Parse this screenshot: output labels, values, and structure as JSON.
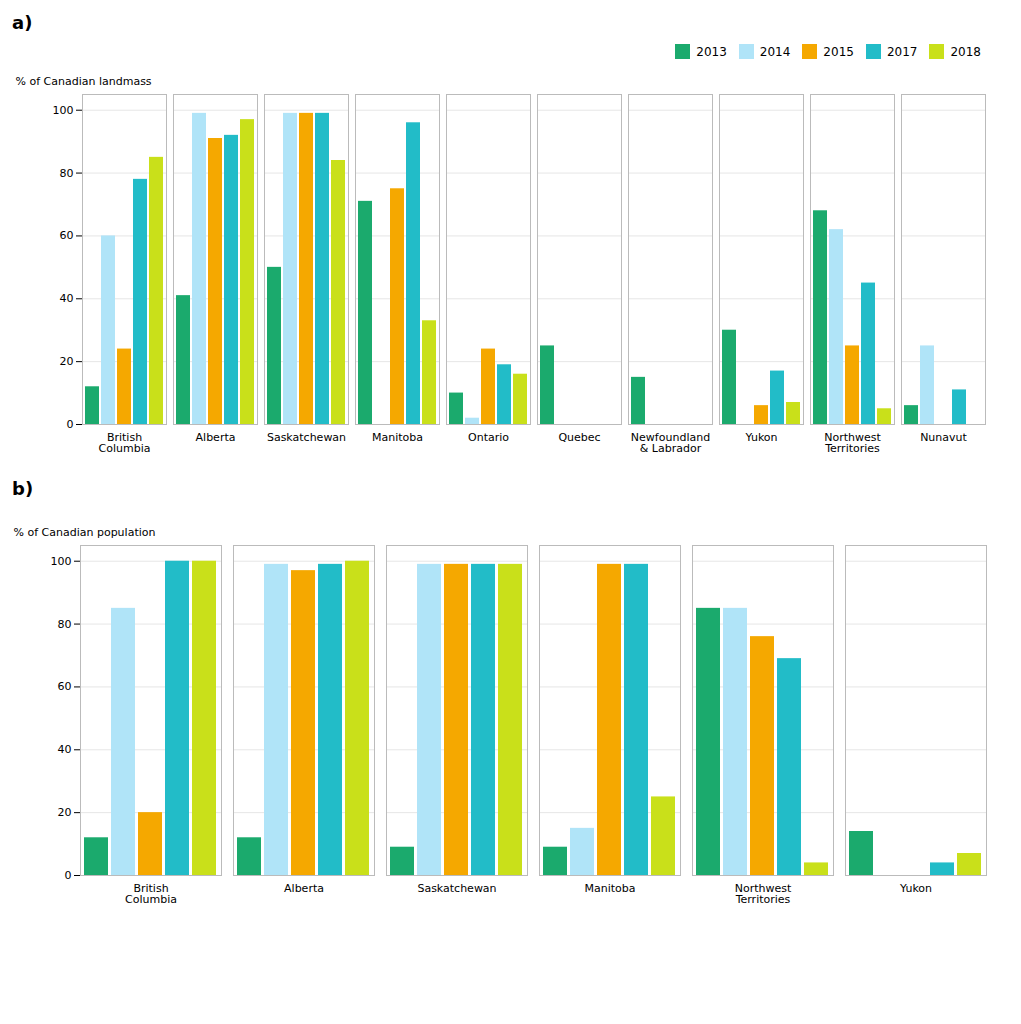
{
  "chart_data": [
    {
      "type": "bar",
      "title": "a)",
      "ylabel": "% of Canadian landmass",
      "categories": [
        "British\nColumbia",
        "Alberta",
        "Saskatchewan",
        "Manitoba",
        "Ontario",
        "Quebec",
        "Newfoundland\n& Labrador",
        "Yukon",
        "Northwest\nTerritories",
        "Nunavut"
      ],
      "series": [
        {
          "name": "2013",
          "color": "#1baa6d",
          "values": [
            12,
            41,
            50,
            71,
            10,
            25,
            15,
            30,
            68,
            6
          ]
        },
        {
          "name": "2014",
          "color": "#b0e4f8",
          "values": [
            60,
            99,
            99,
            0,
            2,
            0,
            0,
            0,
            62,
            25
          ]
        },
        {
          "name": "2015",
          "color": "#f5a800",
          "values": [
            24,
            91,
            99,
            75,
            24,
            0,
            0,
            6,
            25,
            0
          ]
        },
        {
          "name": "2017",
          "color": "#22bcc8",
          "values": [
            78,
            92,
            99,
            96,
            19,
            0,
            0,
            17,
            45,
            11
          ]
        },
        {
          "name": "2018",
          "color": "#c9e01a",
          "values": [
            85,
            97,
            84,
            33,
            16,
            0,
            0,
            7,
            5,
            0
          ]
        }
      ],
      "ylim": [
        0,
        105
      ],
      "yticks": [
        0,
        20,
        40,
        60,
        80,
        100
      ],
      "grid": true,
      "legend": "upper right"
    },
    {
      "type": "bar",
      "title": "b)",
      "ylabel": "% of Canadian population",
      "categories": [
        "British\nColumbia",
        "Alberta",
        "Saskatchewan",
        "Manitoba",
        "Northwest\nTerritories",
        "Yukon"
      ],
      "series": [
        {
          "name": "2013",
          "color": "#1baa6d",
          "values": [
            12,
            12,
            9,
            9,
            85,
            14
          ]
        },
        {
          "name": "2014",
          "color": "#b0e4f8",
          "values": [
            85,
            99,
            99,
            15,
            85,
            0
          ]
        },
        {
          "name": "2015",
          "color": "#f5a800",
          "values": [
            20,
            97,
            99,
            99,
            76,
            0
          ]
        },
        {
          "name": "2017",
          "color": "#22bcc8",
          "values": [
            100,
            99,
            99,
            99,
            69,
            4
          ]
        },
        {
          "name": "2018",
          "color": "#c9e01a",
          "values": [
            100,
            100,
            99,
            25,
            4,
            7
          ]
        }
      ],
      "ylim": [
        0,
        105
      ],
      "yticks": [
        0,
        20,
        40,
        60,
        80,
        100
      ],
      "grid": true
    }
  ]
}
